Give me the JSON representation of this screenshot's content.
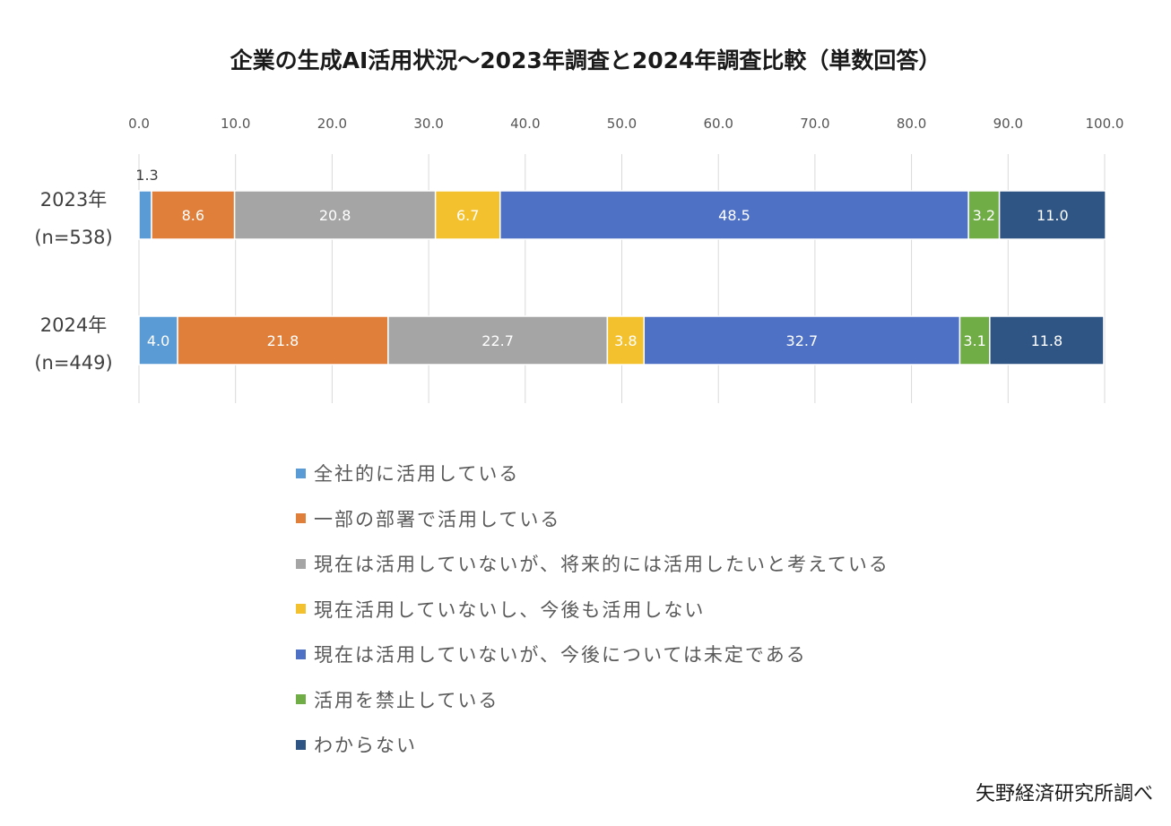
{
  "chart_data": {
    "type": "bar",
    "orientation": "horizontal",
    "stacked": true,
    "title": "企業の生成AI活用状況〜2023年調査と2024年調査比較（単数回答）",
    "categories": [
      {
        "year": "2023年",
        "n": "(n=538)"
      },
      {
        "year": "2024年",
        "n": "(n=449)"
      }
    ],
    "xlim": [
      0,
      100
    ],
    "ticks": [
      "0.0",
      "10.0",
      "20.0",
      "30.0",
      "40.0",
      "50.0",
      "60.0",
      "70.0",
      "80.0",
      "90.0",
      "100.0"
    ],
    "grid": true,
    "legend_position": "bottom",
    "series": [
      {
        "name": "全社的に活用している",
        "color": "#5b9bd5",
        "values": [
          1.3,
          4.0
        ],
        "labels": [
          "1.3",
          "4.0"
        ]
      },
      {
        "name": "一部の部署で活用している",
        "color": "#e07f3a",
        "values": [
          8.6,
          21.8
        ],
        "labels": [
          "8.6",
          "21.8"
        ]
      },
      {
        "name": "現在は活用していないが、将来的には活用したいと考えている",
        "color": "#a5a5a5",
        "values": [
          20.8,
          22.7
        ],
        "labels": [
          "20.8",
          "22.7"
        ]
      },
      {
        "name": "現在活用していないし、今後も活用しない",
        "color": "#f4c12e",
        "values": [
          6.7,
          3.8
        ],
        "labels": [
          "6.7",
          "3.8"
        ]
      },
      {
        "name": "現在は活用していないが、今後については未定である",
        "color": "#4f71c5",
        "values": [
          48.5,
          32.7
        ],
        "labels": [
          "48.5",
          "32.7"
        ]
      },
      {
        "name": "活用を禁止している",
        "color": "#70ad47",
        "values": [
          3.2,
          3.1
        ],
        "labels": [
          "3.2",
          "3.1"
        ]
      },
      {
        "name": "わからない",
        "color": "#2f5584",
        "values": [
          11.0,
          11.8
        ],
        "labels": [
          "11.0",
          "11.8"
        ]
      }
    ]
  },
  "source": "矢野経済研究所調べ"
}
